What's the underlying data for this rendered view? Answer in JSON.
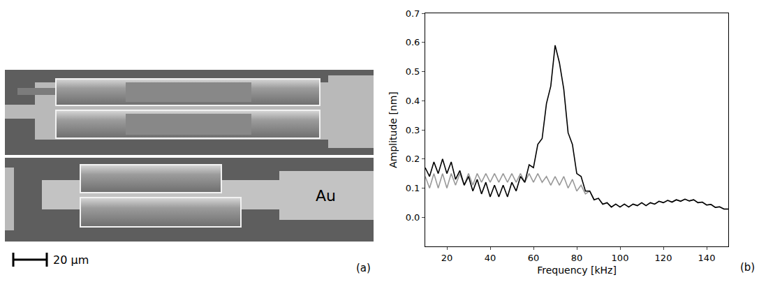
{
  "photo": {
    "label": "(a)",
    "annotation": "Au",
    "scale_bar": "20 µm"
  },
  "chart_label": "(b)",
  "chart_data": {
    "type": "line",
    "x_label": "Frequency [kHz]",
    "y_label": "Amplitude [nm]",
    "x": [
      10,
      12,
      14,
      16,
      18,
      20,
      22,
      24,
      26,
      28,
      30,
      32,
      34,
      36,
      38,
      40,
      42,
      44,
      46,
      48,
      50,
      52,
      54,
      56,
      58,
      60,
      62,
      64,
      66,
      68,
      70,
      72,
      74,
      76,
      78,
      80,
      82,
      84,
      86,
      88,
      90,
      92,
      94,
      96,
      98,
      100,
      102,
      104,
      106,
      108,
      110,
      112,
      114,
      116,
      118,
      120,
      122,
      124,
      126,
      128,
      130,
      132,
      134,
      136,
      138,
      140,
      142,
      144,
      146,
      148,
      150
    ],
    "series": [
      {
        "color": "#999999",
        "values": [
          0.14,
          0.1,
          0.15,
          0.1,
          0.15,
          0.1,
          0.15,
          0.11,
          0.15,
          0.11,
          0.15,
          0.11,
          0.15,
          0.12,
          0.15,
          0.12,
          0.15,
          0.12,
          0.15,
          0.12,
          0.15,
          0.12,
          0.15,
          0.12,
          0.15,
          0.12,
          0.15,
          0.12,
          0.14,
          0.11,
          0.14,
          0.11,
          0.14,
          0.1,
          0.13,
          0.09,
          0.11,
          0.08,
          0.09,
          0.06,
          0.065,
          0.045,
          0.05,
          0.035,
          0.045,
          0.035,
          0.045,
          0.035,
          0.045,
          0.04,
          0.05,
          0.04,
          0.05,
          0.045,
          0.055,
          0.05,
          0.058,
          0.052,
          0.06,
          0.055,
          0.062,
          0.056,
          0.06,
          0.05,
          0.052,
          0.042,
          0.044,
          0.034,
          0.036,
          0.028,
          0.028
        ]
      },
      {
        "color": "#000000",
        "values": [
          0.17,
          0.14,
          0.19,
          0.15,
          0.2,
          0.15,
          0.19,
          0.13,
          0.16,
          0.11,
          0.14,
          0.09,
          0.13,
          0.08,
          0.12,
          0.07,
          0.11,
          0.07,
          0.11,
          0.07,
          0.12,
          0.09,
          0.14,
          0.12,
          0.18,
          0.17,
          0.25,
          0.27,
          0.39,
          0.45,
          0.59,
          0.53,
          0.44,
          0.29,
          0.25,
          0.15,
          0.14,
          0.09,
          0.09,
          0.06,
          0.065,
          0.045,
          0.05,
          0.035,
          0.045,
          0.035,
          0.045,
          0.035,
          0.045,
          0.04,
          0.05,
          0.04,
          0.05,
          0.045,
          0.055,
          0.05,
          0.058,
          0.052,
          0.06,
          0.055,
          0.062,
          0.056,
          0.06,
          0.05,
          0.052,
          0.042,
          0.044,
          0.034,
          0.036,
          0.028,
          0.028
        ]
      }
    ],
    "xlim": [
      10,
      150
    ],
    "xticks": [
      20,
      40,
      60,
      80,
      100,
      120,
      140
    ],
    "ylim": [
      -0.1,
      0.7
    ],
    "yticks": [
      {
        "value": 0,
        "label": "0.0"
      },
      {
        "value": 0.1,
        "label": "0.1"
      },
      {
        "value": 0.2,
        "label": "0.2"
      },
      {
        "value": 0.3,
        "label": "0.3"
      },
      {
        "value": 0.4,
        "label": "0.4"
      },
      {
        "value": 0.5,
        "label": "0.5"
      },
      {
        "value": 0.6,
        "label": "0.6"
      },
      {
        "value": 0.7,
        "label": "0.7"
      }
    ],
    "grid": false
  }
}
